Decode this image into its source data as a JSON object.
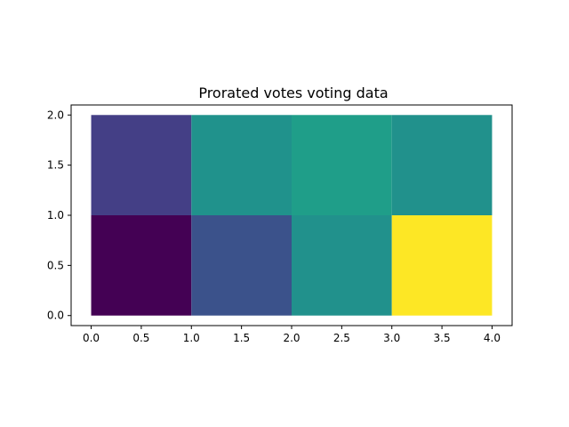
{
  "chart_data": {
    "type": "heatmap",
    "title": "Prorated votes voting data",
    "xlabel": "",
    "ylabel": "",
    "xlim": [
      -0.2,
      4.2
    ],
    "ylim": [
      -0.1,
      2.1
    ],
    "x_edges": [
      0,
      1,
      2,
      3,
      4
    ],
    "y_edges": [
      0,
      1,
      2
    ],
    "x_ticks": [
      0.0,
      0.5,
      1.0,
      1.5,
      2.0,
      2.5,
      3.0,
      3.5,
      4.0
    ],
    "x_tick_labels": [
      "0.0",
      "0.5",
      "1.0",
      "1.5",
      "2.0",
      "2.5",
      "3.0",
      "3.5",
      "4.0"
    ],
    "y_ticks": [
      0.0,
      0.5,
      1.0,
      1.5,
      2.0
    ],
    "y_tick_labels": [
      "0.0",
      "0.5",
      "1.0",
      "1.5",
      "2.0"
    ],
    "colormap": "viridis",
    "grid": false,
    "cells": [
      {
        "x0": 0,
        "x1": 1,
        "y0": 0,
        "y1": 1,
        "color": "#440154"
      },
      {
        "x0": 1,
        "x1": 2,
        "y0": 0,
        "y1": 1,
        "color": "#3b528b"
      },
      {
        "x0": 2,
        "x1": 3,
        "y0": 0,
        "y1": 1,
        "color": "#21918c"
      },
      {
        "x0": 3,
        "x1": 4,
        "y0": 0,
        "y1": 1,
        "color": "#fde725"
      },
      {
        "x0": 0,
        "x1": 1,
        "y0": 1,
        "y1": 2,
        "color": "#443f86"
      },
      {
        "x0": 1,
        "x1": 2,
        "y0": 1,
        "y1": 2,
        "color": "#20928c"
      },
      {
        "x0": 2,
        "x1": 3,
        "y0": 1,
        "y1": 2,
        "color": "#1f9e89"
      },
      {
        "x0": 3,
        "x1": 4,
        "y0": 1,
        "y1": 2,
        "color": "#21918c"
      }
    ]
  }
}
